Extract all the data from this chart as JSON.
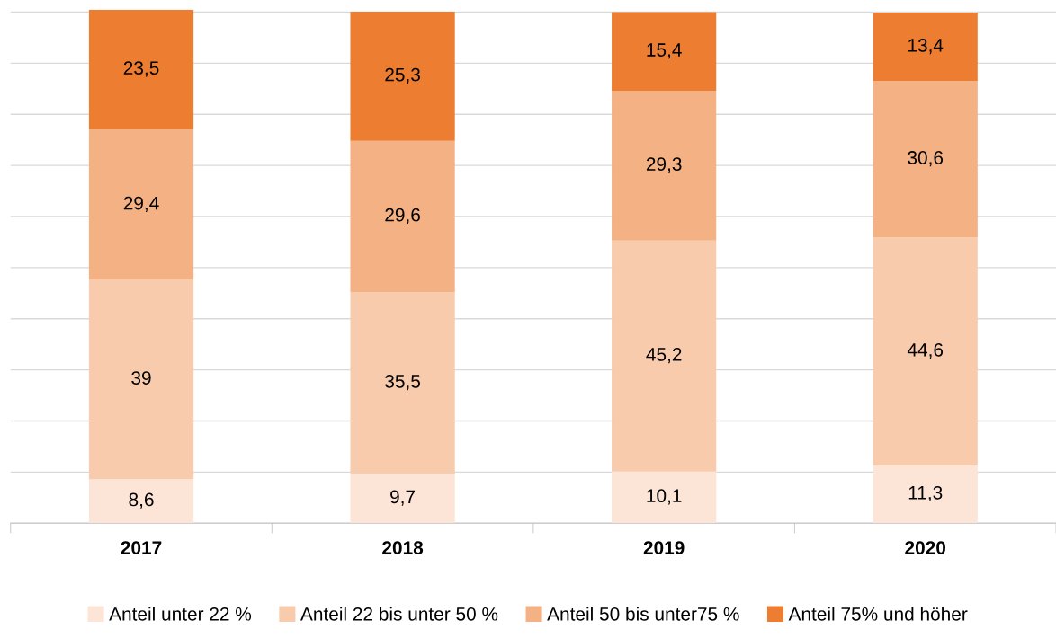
{
  "chart_data": {
    "type": "bar",
    "stacked": true,
    "categories": [
      "2017",
      "2018",
      "2019",
      "2020"
    ],
    "series": [
      {
        "name": "Anteil unter 22 %",
        "color": "#fce4d6",
        "values": [
          8.6,
          9.7,
          10.1,
          11.3
        ],
        "value_labels": [
          "8,6",
          "9,7",
          "10,1",
          "11,3"
        ]
      },
      {
        "name": "Anteil 22 bis unter 50 %",
        "color": "#f8cbad",
        "values": [
          39,
          35.5,
          45.2,
          44.6
        ],
        "value_labels": [
          "39",
          "35,5",
          "45,2",
          "44,6"
        ]
      },
      {
        "name": "Anteil 50 bis unter75 %",
        "color": "#f4b183",
        "values": [
          29.4,
          29.6,
          29.3,
          30.6
        ],
        "value_labels": [
          "29,4",
          "29,6",
          "29,3",
          "30,6"
        ]
      },
      {
        "name": "Anteil 75% und höher",
        "color": "#ed7d31",
        "values": [
          23.5,
          25.3,
          15.4,
          13.4
        ],
        "value_labels": [
          "23,5",
          "25,3",
          "15,4",
          "13,4"
        ]
      }
    ],
    "ylim": [
      0,
      100.5
    ],
    "yticks": [
      {
        "value": 0,
        "label": null
      },
      {
        "value": 10,
        "label": null
      },
      {
        "value": 20,
        "label": null
      },
      {
        "value": 30,
        "label": null
      },
      {
        "value": 40,
        "label": null
      },
      {
        "value": 50,
        "label": null
      },
      {
        "value": 60,
        "label": null
      },
      {
        "value": 70,
        "label": null
      },
      {
        "value": 80,
        "label": null
      },
      {
        "value": 90,
        "label": null
      },
      {
        "value": 100,
        "label": null
      }
    ],
    "tick_labels": "x",
    "grid": "y",
    "legend": "bottom"
  }
}
